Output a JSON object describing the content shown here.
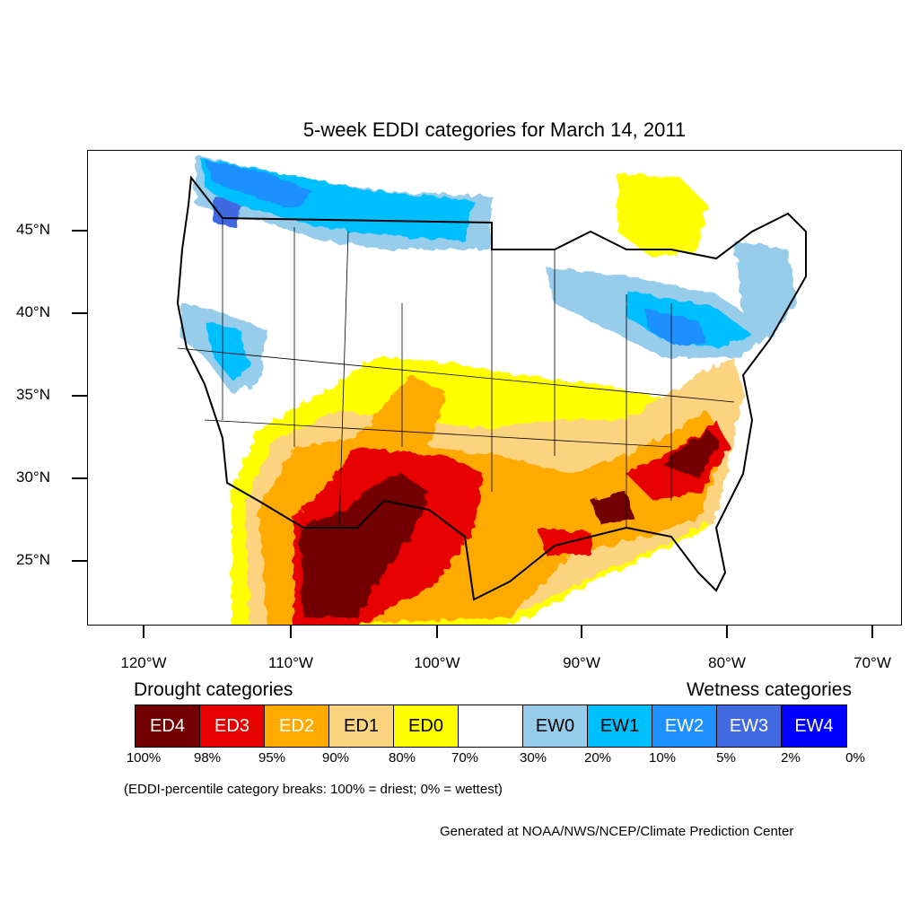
{
  "map": {
    "title": "5-week EDDI categories for March 14, 2011",
    "lat_labels": [
      "45°N",
      "40°N",
      "35°N",
      "30°N",
      "25°N"
    ],
    "lon_labels": [
      "120°W",
      "110°W",
      "100°W",
      "90°W",
      "80°W",
      "70°W"
    ]
  },
  "legend": {
    "drought_heading": "Drought categories",
    "wetness_heading": "Wetness categories",
    "categories": [
      {
        "label": "ED4",
        "color": "#730000",
        "text_color": "#ffffff"
      },
      {
        "label": "ED3",
        "color": "#e60000",
        "text_color": "#ffffff"
      },
      {
        "label": "ED2",
        "color": "#ffaa00",
        "text_color": "#ffffff"
      },
      {
        "label": "ED1",
        "color": "#fcd37f",
        "text_color": "#000000"
      },
      {
        "label": "ED0",
        "color": "#ffff00",
        "text_color": "#000000"
      },
      {
        "label": "",
        "color": "#ffffff",
        "text_color": "#000000"
      },
      {
        "label": "EW0",
        "color": "#97cdeb",
        "text_color": "#000000"
      },
      {
        "label": "EW1",
        "color": "#00bfff",
        "text_color": "#000000"
      },
      {
        "label": "EW2",
        "color": "#1e90ff",
        "text_color": "#ffffff"
      },
      {
        "label": "EW3",
        "color": "#4169e1",
        "text_color": "#ffffff"
      },
      {
        "label": "EW4",
        "color": "#0000ff",
        "text_color": "#ffffff"
      }
    ],
    "percentiles": [
      "100%",
      "98%",
      "95%",
      "90%",
      "80%",
      "70%",
      "30%",
      "20%",
      "10%",
      "5%",
      "2%",
      "0%"
    ],
    "note": "(EDDI-percentile category breaks: 100% = driest; 0% = wettest)",
    "credit": "Generated at NOAA/NWS/NCEP/Climate Prediction Center"
  }
}
